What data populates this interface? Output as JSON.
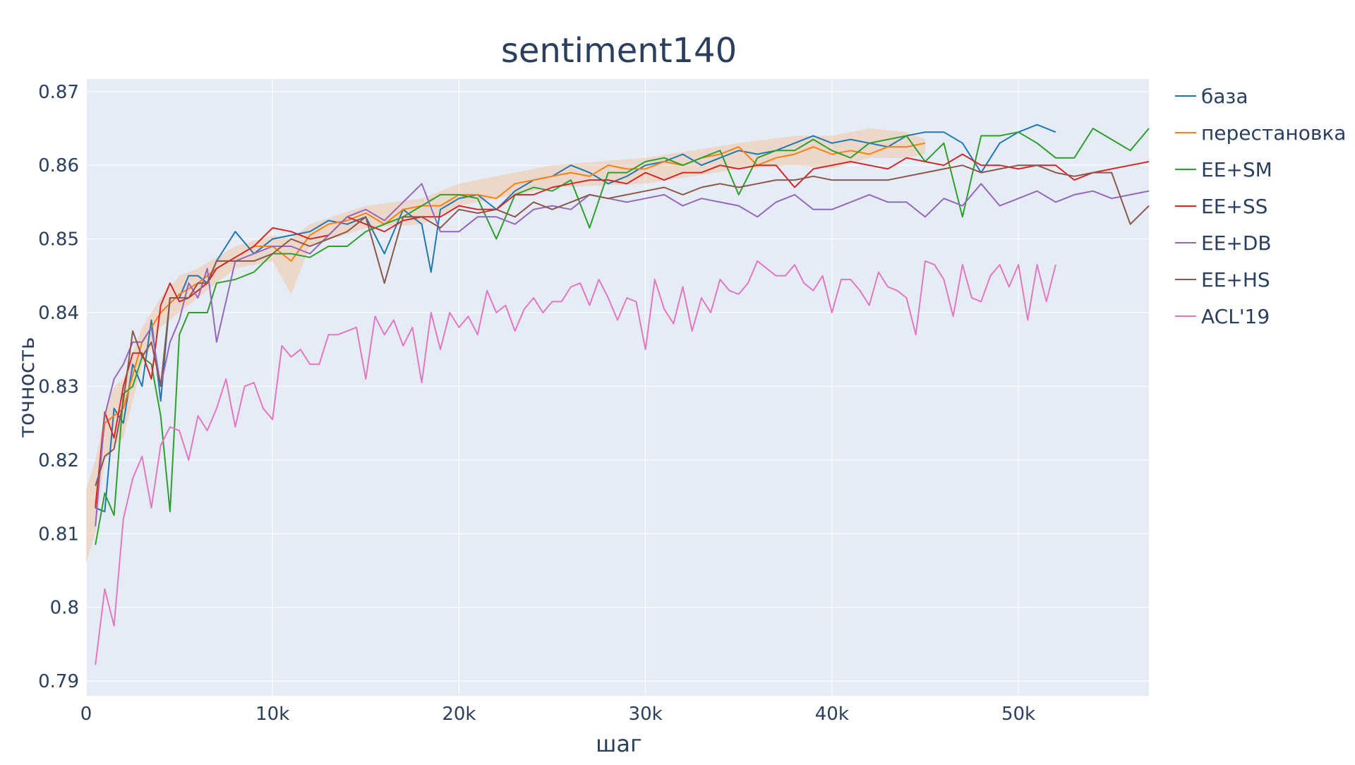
{
  "chart_data": {
    "type": "line",
    "title": "sentiment140",
    "xlabel": "шаг",
    "ylabel": "точность",
    "xlim": [
      0,
      57000
    ],
    "ylim": [
      0.788,
      0.8717
    ],
    "x_ticks": [
      0,
      10000,
      20000,
      30000,
      40000,
      50000
    ],
    "x_tick_labels": [
      "0",
      "10k",
      "20k",
      "30k",
      "40k",
      "50k"
    ],
    "y_ticks": [
      0.79,
      0.8,
      0.81,
      0.82,
      0.83,
      0.84,
      0.85,
      0.86,
      0.87
    ],
    "y_tick_labels": [
      "0.79",
      "0.8",
      "0.81",
      "0.82",
      "0.83",
      "0.84",
      "0.85",
      "0.86",
      "0.87"
    ],
    "grid": true,
    "legend_position": "right",
    "band": {
      "series": "перестановка",
      "color": "rgba(245,180,120,0.35)",
      "x": [
        0,
        500,
        1000,
        1500,
        2000,
        3000,
        4000,
        5000,
        6000,
        8000,
        10000,
        11000,
        12000,
        15000,
        18000,
        20000,
        25000,
        30000,
        35000,
        38000,
        40000,
        42000,
        44000,
        45000
      ],
      "upper": [
        0.816,
        0.82,
        0.826,
        0.83,
        0.831,
        0.838,
        0.842,
        0.845,
        0.846,
        0.849,
        0.8505,
        0.85,
        0.852,
        0.8545,
        0.8555,
        0.8575,
        0.86,
        0.861,
        0.863,
        0.864,
        0.864,
        0.865,
        0.8645,
        0.8635
      ],
      "lower": [
        0.806,
        0.81,
        0.82,
        0.822,
        0.823,
        0.833,
        0.838,
        0.84,
        0.842,
        0.846,
        0.847,
        0.8425,
        0.849,
        0.8515,
        0.852,
        0.8545,
        0.857,
        0.8575,
        0.8595,
        0.86,
        0.8595,
        0.861,
        0.861,
        0.8615
      ]
    },
    "series": [
      {
        "name": "база",
        "color": "#1f77b4",
        "x": [
          500,
          1000,
          1500,
          2000,
          2500,
          3000,
          3500,
          4000,
          4500,
          5000,
          5500,
          6000,
          6500,
          7000,
          8000,
          9000,
          10000,
          11000,
          12000,
          13000,
          14000,
          15000,
          16000,
          17000,
          18000,
          18500,
          19000,
          20000,
          21000,
          22000,
          23000,
          24000,
          25000,
          26000,
          27000,
          28000,
          29000,
          30000,
          31000,
          32000,
          33000,
          34000,
          35000,
          36000,
          37000,
          38000,
          39000,
          40000,
          41000,
          42000,
          43000,
          44000,
          45000,
          46000,
          47000,
          48000,
          49000,
          50000,
          51000,
          52000
        ],
        "y": [
          0.8135,
          0.813,
          0.827,
          0.825,
          0.833,
          0.83,
          0.839,
          0.828,
          0.842,
          0.842,
          0.845,
          0.845,
          0.844,
          0.847,
          0.851,
          0.848,
          0.85,
          0.8505,
          0.851,
          0.8525,
          0.852,
          0.853,
          0.848,
          0.854,
          0.852,
          0.8455,
          0.854,
          0.8555,
          0.856,
          0.854,
          0.8565,
          0.858,
          0.8585,
          0.86,
          0.859,
          0.8575,
          0.8585,
          0.86,
          0.8605,
          0.8615,
          0.86,
          0.861,
          0.862,
          0.8615,
          0.862,
          0.863,
          0.864,
          0.863,
          0.8635,
          0.863,
          0.8625,
          0.864,
          0.8645,
          0.8645,
          0.863,
          0.859,
          0.863,
          0.8645,
          0.8655,
          0.8645
        ]
      },
      {
        "name": "перестановка",
        "color": "#ff7f0e",
        "x": [
          500,
          1000,
          1500,
          2000,
          3000,
          4000,
          5000,
          6000,
          7000,
          8000,
          9000,
          10000,
          11000,
          12000,
          13000,
          14000,
          15000,
          16000,
          17000,
          18000,
          19000,
          20000,
          21000,
          22000,
          23000,
          24000,
          25000,
          26000,
          27000,
          28000,
          29000,
          30000,
          31000,
          32000,
          33000,
          34000,
          35000,
          36000,
          37000,
          38000,
          39000,
          40000,
          41000,
          42000,
          43000,
          44000,
          45000
        ],
        "y": [
          0.814,
          0.825,
          0.826,
          0.827,
          0.836,
          0.84,
          0.8425,
          0.844,
          0.846,
          0.8475,
          0.849,
          0.849,
          0.847,
          0.8505,
          0.852,
          0.8525,
          0.8535,
          0.852,
          0.854,
          0.8545,
          0.8545,
          0.856,
          0.856,
          0.8555,
          0.8575,
          0.858,
          0.8585,
          0.859,
          0.8585,
          0.86,
          0.8595,
          0.8595,
          0.8605,
          0.86,
          0.861,
          0.8615,
          0.8625,
          0.86,
          0.861,
          0.8615,
          0.8625,
          0.8615,
          0.862,
          0.8615,
          0.8625,
          0.8625,
          0.863
        ]
      },
      {
        "name": "EE+SM",
        "color": "#2ca02c",
        "x": [
          500,
          1000,
          1500,
          2000,
          2500,
          3000,
          3500,
          4000,
          4500,
          5000,
          5500,
          6000,
          6500,
          7000,
          8000,
          9000,
          10000,
          11000,
          12000,
          13000,
          14000,
          15000,
          16000,
          17000,
          18000,
          19000,
          20000,
          21000,
          22000,
          23000,
          24000,
          25000,
          26000,
          27000,
          28000,
          29000,
          30000,
          31000,
          32000,
          33000,
          34000,
          35000,
          36000,
          37000,
          38000,
          39000,
          40000,
          41000,
          42000,
          43000,
          44000,
          45000,
          46000,
          47000,
          48000,
          49000,
          50000,
          51000,
          52000,
          53000,
          54000,
          55000,
          56000,
          57000
        ],
        "y": [
          0.8085,
          0.8155,
          0.8125,
          0.829,
          0.83,
          0.834,
          0.833,
          0.826,
          0.813,
          0.837,
          0.84,
          0.84,
          0.84,
          0.844,
          0.8445,
          0.8455,
          0.848,
          0.848,
          0.8475,
          0.849,
          0.849,
          0.851,
          0.852,
          0.853,
          0.8545,
          0.856,
          0.856,
          0.8555,
          0.85,
          0.856,
          0.857,
          0.8565,
          0.858,
          0.8515,
          0.859,
          0.859,
          0.8605,
          0.861,
          0.86,
          0.861,
          0.862,
          0.856,
          0.861,
          0.862,
          0.862,
          0.8635,
          0.862,
          0.861,
          0.863,
          0.8635,
          0.864,
          0.8605,
          0.863,
          0.853,
          0.864,
          0.864,
          0.8645,
          0.863,
          0.861,
          0.861,
          0.865,
          0.8635,
          0.862,
          0.865
        ]
      },
      {
        "name": "EE+SS",
        "color": "#d62728",
        "x": [
          500,
          1000,
          1500,
          2000,
          2500,
          3000,
          3500,
          4000,
          4500,
          5000,
          5500,
          6000,
          6500,
          7000,
          8000,
          9000,
          10000,
          11000,
          12000,
          13000,
          14000,
          15000,
          16000,
          17000,
          18000,
          19000,
          20000,
          21000,
          22000,
          23000,
          24000,
          25000,
          26000,
          27000,
          28000,
          29000,
          30000,
          31000,
          32000,
          33000,
          34000,
          35000,
          36000,
          37000,
          38000,
          39000,
          40000,
          41000,
          42000,
          43000,
          44000,
          45000,
          46000,
          47000,
          48000,
          49000,
          50000,
          51000,
          52000,
          53000,
          54000,
          55000,
          56000,
          57000
        ],
        "y": [
          0.8135,
          0.8265,
          0.823,
          0.83,
          0.8345,
          0.8345,
          0.831,
          0.841,
          0.844,
          0.8415,
          0.842,
          0.843,
          0.844,
          0.846,
          0.8475,
          0.849,
          0.8515,
          0.851,
          0.85,
          0.8505,
          0.853,
          0.852,
          0.851,
          0.8525,
          0.853,
          0.853,
          0.8545,
          0.854,
          0.854,
          0.856,
          0.856,
          0.857,
          0.8575,
          0.858,
          0.858,
          0.8575,
          0.859,
          0.858,
          0.859,
          0.859,
          0.86,
          0.8595,
          0.86,
          0.86,
          0.857,
          0.8595,
          0.86,
          0.8605,
          0.86,
          0.8595,
          0.861,
          0.8605,
          0.86,
          0.8615,
          0.86,
          0.86,
          0.8595,
          0.86,
          0.86,
          0.858,
          0.859,
          0.8595,
          0.86,
          0.8605
        ]
      },
      {
        "name": "EE+DB",
        "color": "#9467bd",
        "x": [
          500,
          1000,
          1500,
          2000,
          2500,
          3000,
          3500,
          4000,
          4500,
          5000,
          5500,
          6000,
          6500,
          7000,
          8000,
          9000,
          10000,
          11000,
          12000,
          13000,
          14000,
          15000,
          16000,
          17000,
          18000,
          19000,
          20000,
          21000,
          22000,
          23000,
          24000,
          25000,
          26000,
          27000,
          28000,
          29000,
          30000,
          31000,
          32000,
          33000,
          34000,
          35000,
          36000,
          37000,
          38000,
          39000,
          40000,
          41000,
          42000,
          43000,
          44000,
          45000,
          46000,
          47000,
          48000,
          49000,
          50000,
          51000,
          52000,
          53000,
          54000,
          55000,
          56000,
          57000
        ],
        "y": [
          0.811,
          0.826,
          0.831,
          0.833,
          0.836,
          0.836,
          0.838,
          0.83,
          0.836,
          0.839,
          0.844,
          0.842,
          0.846,
          0.836,
          0.847,
          0.848,
          0.849,
          0.849,
          0.848,
          0.8505,
          0.853,
          0.854,
          0.8525,
          0.855,
          0.8575,
          0.851,
          0.851,
          0.853,
          0.853,
          0.852,
          0.854,
          0.8545,
          0.854,
          0.856,
          0.8555,
          0.855,
          0.8555,
          0.856,
          0.8545,
          0.8555,
          0.855,
          0.8545,
          0.853,
          0.855,
          0.856,
          0.854,
          0.854,
          0.855,
          0.856,
          0.855,
          0.855,
          0.853,
          0.8555,
          0.8545,
          0.8575,
          0.8545,
          0.8555,
          0.8565,
          0.855,
          0.856,
          0.8565,
          0.8555,
          0.856,
          0.8565
        ]
      },
      {
        "name": "EE+HS",
        "color": "#8c564b",
        "x": [
          500,
          1000,
          1500,
          2000,
          2500,
          3000,
          3500,
          4000,
          4500,
          5000,
          5500,
          6000,
          6500,
          7000,
          8000,
          9000,
          10000,
          11000,
          12000,
          13000,
          14000,
          15000,
          16000,
          17000,
          18000,
          19000,
          20000,
          21000,
          22000,
          23000,
          24000,
          25000,
          26000,
          27000,
          28000,
          29000,
          30000,
          31000,
          32000,
          33000,
          34000,
          35000,
          36000,
          37000,
          38000,
          39000,
          40000,
          41000,
          42000,
          43000,
          44000,
          45000,
          46000,
          47000,
          48000,
          49000,
          50000,
          51000,
          52000,
          53000,
          54000,
          55000,
          56000,
          57000
        ],
        "y": [
          0.8165,
          0.8205,
          0.8215,
          0.828,
          0.8375,
          0.834,
          0.836,
          0.83,
          0.842,
          0.842,
          0.842,
          0.844,
          0.844,
          0.847,
          0.847,
          0.847,
          0.848,
          0.85,
          0.849,
          0.85,
          0.851,
          0.853,
          0.844,
          0.853,
          0.853,
          0.8515,
          0.854,
          0.8535,
          0.854,
          0.853,
          0.855,
          0.854,
          0.855,
          0.856,
          0.8555,
          0.856,
          0.8565,
          0.857,
          0.856,
          0.857,
          0.8575,
          0.857,
          0.8575,
          0.858,
          0.858,
          0.8585,
          0.858,
          0.858,
          0.858,
          0.858,
          0.8585,
          0.859,
          0.8595,
          0.86,
          0.859,
          0.8595,
          0.86,
          0.86,
          0.859,
          0.8585,
          0.859,
          0.859,
          0.852,
          0.8545
        ]
      },
      {
        "name": "ACL'19",
        "color": "#e377c2",
        "x": [
          500,
          1000,
          1500,
          2000,
          2500,
          3000,
          3500,
          4000,
          4500,
          5000,
          5500,
          6000,
          6500,
          7000,
          7500,
          8000,
          8500,
          9000,
          9500,
          10000,
          10500,
          11000,
          11500,
          12000,
          12500,
          13000,
          13500,
          14000,
          14500,
          15000,
          15500,
          16000,
          16500,
          17000,
          17500,
          18000,
          18500,
          19000,
          19500,
          20000,
          20500,
          21000,
          21500,
          22000,
          22500,
          23000,
          23500,
          24000,
          24500,
          25000,
          25500,
          26000,
          26500,
          27000,
          27500,
          28000,
          28500,
          29000,
          29500,
          30000,
          30500,
          31000,
          31500,
          32000,
          32500,
          33000,
          33500,
          34000,
          34500,
          35000,
          35500,
          36000,
          36500,
          37000,
          37500,
          38000,
          38500,
          39000,
          39500,
          40000,
          40500,
          41000,
          41500,
          42000,
          42500,
          43000,
          43500,
          44000,
          44500,
          45000,
          45500,
          46000,
          46500,
          47000,
          47500,
          48000,
          48500,
          49000,
          49500,
          50000,
          50500,
          51000,
          51500,
          52000
        ],
        "y": [
          0.7922,
          0.8025,
          0.7975,
          0.812,
          0.8175,
          0.8205,
          0.8135,
          0.822,
          0.8245,
          0.824,
          0.82,
          0.826,
          0.824,
          0.827,
          0.831,
          0.8245,
          0.83,
          0.8305,
          0.827,
          0.8255,
          0.8355,
          0.834,
          0.835,
          0.833,
          0.833,
          0.837,
          0.837,
          0.8375,
          0.838,
          0.831,
          0.8395,
          0.837,
          0.839,
          0.8355,
          0.838,
          0.8305,
          0.84,
          0.835,
          0.84,
          0.838,
          0.8395,
          0.837,
          0.843,
          0.84,
          0.841,
          0.8375,
          0.8405,
          0.842,
          0.84,
          0.8415,
          0.8415,
          0.8435,
          0.844,
          0.841,
          0.8445,
          0.842,
          0.839,
          0.842,
          0.8415,
          0.835,
          0.8445,
          0.8405,
          0.8385,
          0.8435,
          0.8375,
          0.842,
          0.84,
          0.8445,
          0.843,
          0.8425,
          0.844,
          0.847,
          0.846,
          0.845,
          0.845,
          0.8465,
          0.844,
          0.843,
          0.845,
          0.84,
          0.8445,
          0.8445,
          0.843,
          0.841,
          0.8455,
          0.8435,
          0.843,
          0.842,
          0.837,
          0.847,
          0.8465,
          0.8445,
          0.8395,
          0.8465,
          0.842,
          0.8415,
          0.845,
          0.8465,
          0.8435,
          0.8465,
          0.839,
          0.8465,
          0.8415,
          0.8465
        ]
      }
    ]
  }
}
